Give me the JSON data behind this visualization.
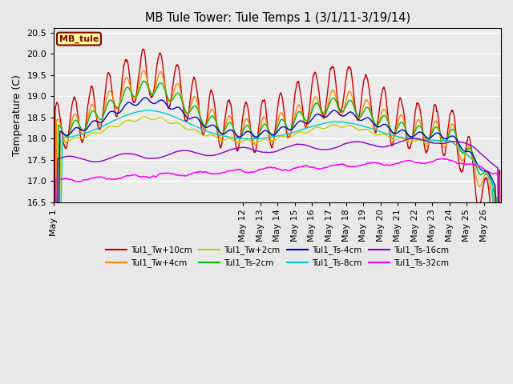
{
  "title": "MB Tule Tower: Tule Temps 1 (3/1/11-3/19/14)",
  "ylabel": "Temperature (C)",
  "ylim": [
    16.5,
    20.6
  ],
  "yticks": [
    16.5,
    17.0,
    17.5,
    18.0,
    18.5,
    19.0,
    19.5,
    20.0,
    20.5
  ],
  "background_color": "#e8e8e8",
  "plot_bg": "#ebebeb",
  "legend_label": "MB_tule",
  "legend_box_facecolor": "#ffff99",
  "legend_box_edgecolor": "#880000",
  "legend_label_color": "#880000",
  "series": [
    {
      "label": "Tul1_Tw+10cm",
      "color": "#cc0000"
    },
    {
      "label": "Tul1_Tw+4cm",
      "color": "#ff8800"
    },
    {
      "label": "Tul1_Tw+2cm",
      "color": "#cccc00"
    },
    {
      "label": "Tul1_Ts-2cm",
      "color": "#00bb00"
    },
    {
      "label": "Tul1_Ts-4cm",
      "color": "#0000cc"
    },
    {
      "label": "Tul1_Ts-8cm",
      "color": "#00cccc"
    },
    {
      "label": "Tul1_Ts-16cm",
      "color": "#8800cc"
    },
    {
      "label": "Tul1_Ts-32cm",
      "color": "#ff00ff"
    }
  ],
  "xtick_labels": [
    "May 1",
    "May 12",
    "May 13",
    "May 14",
    "May 15",
    "May 16",
    "May 17",
    "May 18",
    "May 19",
    "May 20",
    "May 21",
    "May 22",
    "May 23",
    "May 24",
    "May 25",
    "May 26"
  ]
}
